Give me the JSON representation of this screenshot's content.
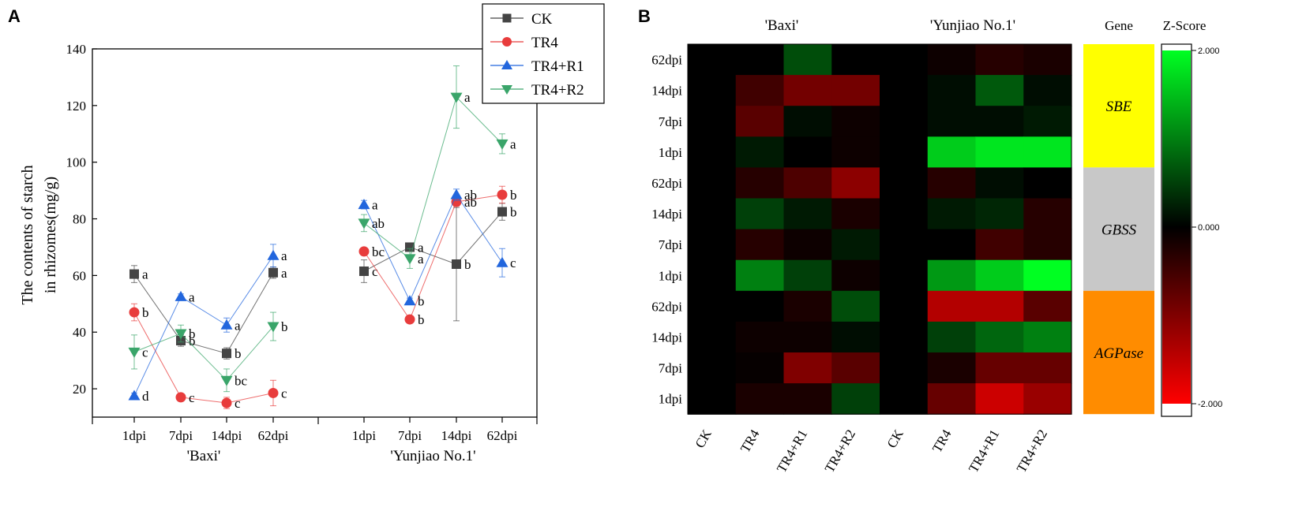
{
  "chart_data": [
    {
      "type": "line",
      "panel_label": "A",
      "ylabel_line1": "The contents of starch",
      "ylabel_line2": "in rhizomes(mg/g)",
      "ylim": [
        10,
        140
      ],
      "yticks": [
        "20",
        "40",
        "60",
        "80",
        "100",
        "120",
        "140"
      ],
      "groups": [
        {
          "name": "'Baxi'",
          "categories": [
            "1dpi",
            "7dpi",
            "14dpi",
            "62dpi"
          ]
        },
        {
          "name": "'Yunjiao No.1'",
          "categories": [
            "1dpi",
            "7dpi",
            "14dpi",
            "62dpi"
          ]
        }
      ],
      "series": [
        {
          "name": "CK",
          "color": "#444444",
          "marker": "square",
          "values": [
            60.5,
            37,
            32.5,
            61,
            61.5,
            70,
            64,
            82.5
          ],
          "errors": [
            3,
            2,
            2,
            2,
            4,
            1,
            20,
            3
          ],
          "letters": [
            "a",
            "b",
            "b",
            "a",
            "c",
            "a",
            "b",
            "b"
          ]
        },
        {
          "name": "TR4",
          "color": "#e83c3c",
          "marker": "circle",
          "values": [
            47,
            17,
            15,
            18.5,
            68.5,
            44.5,
            86,
            88.5
          ],
          "errors": [
            3,
            1,
            2,
            4.5,
            1,
            1,
            1.5,
            3
          ],
          "letters": [
            "b",
            "c",
            "c",
            "c",
            "bc",
            "b",
            "ab",
            "b"
          ]
        },
        {
          "name": "TR4+R1",
          "color": "#2266dd",
          "marker": "triangle-up",
          "values": [
            17.5,
            52.5,
            42.5,
            67,
            85,
            51,
            88.5,
            64.5
          ],
          "errors": [
            1,
            1,
            2.5,
            4,
            1.5,
            1,
            2,
            5
          ],
          "letters": [
            "d",
            "a",
            "a",
            "a",
            "a",
            "b",
            "ab",
            "c"
          ]
        },
        {
          "name": "TR4+R2",
          "color": "#3aa56a",
          "marker": "triangle-down",
          "values": [
            33,
            39.5,
            23,
            42,
            78.5,
            66,
            123,
            106.5
          ],
          "errors": [
            6,
            3,
            4,
            5,
            3,
            3.5,
            11,
            3.5
          ],
          "letters": [
            "c",
            "b",
            "bc",
            "b",
            "ab",
            "a",
            "a",
            "a"
          ]
        }
      ]
    },
    {
      "type": "heatmap",
      "panel_label": "B",
      "group_labels": [
        "'Baxi'",
        "'Yunjiao No.1'"
      ],
      "gene_header": "Gene",
      "zscore_header": "Z-Score",
      "rows": [
        "62dpi",
        "14dpi",
        "7dpi",
        "1dpi",
        "62dpi",
        "14dpi",
        "7dpi",
        "1dpi",
        "62dpi",
        "14dpi",
        "7dpi",
        "1dpi"
      ],
      "columns": [
        "CK",
        "TR4",
        "TR4+R1",
        "TR4+R2",
        "CK",
        "TR4",
        "TR4+R1",
        "TR4+R2"
      ],
      "values": [
        [
          0,
          0,
          0.6,
          0,
          0,
          -0.1,
          -0.3,
          -0.2
        ],
        [
          0,
          -0.5,
          -0.9,
          -0.9,
          0,
          0.1,
          0.7,
          0.1
        ],
        [
          0,
          -0.7,
          0.1,
          -0.1,
          0,
          0.1,
          0.1,
          0.2
        ],
        [
          0,
          0.2,
          0,
          -0.1,
          0,
          1.6,
          1.8,
          1.8
        ],
        [
          0,
          -0.3,
          -0.6,
          -1.1,
          0,
          -0.3,
          0.1,
          0
        ],
        [
          0,
          0.5,
          0.2,
          -0.2,
          0,
          0.2,
          0.3,
          -0.3
        ],
        [
          0,
          -0.3,
          -0.1,
          0.2,
          0,
          0,
          -0.5,
          -0.3
        ],
        [
          0,
          1.0,
          0.5,
          -0.1,
          0,
          1.2,
          1.6,
          2.0
        ],
        [
          0,
          0,
          -0.2,
          0.6,
          0,
          -1.4,
          -1.4,
          -0.7
        ],
        [
          0,
          -0.1,
          -0.1,
          0.1,
          0,
          0.5,
          0.8,
          1.0
        ],
        [
          0,
          -0.05,
          -1.0,
          -0.7,
          0,
          -0.2,
          -0.8,
          -0.8
        ],
        [
          0,
          -0.2,
          -0.2,
          0.5,
          0,
          -0.8,
          -1.6,
          -1.2
        ]
      ],
      "genes": [
        {
          "name": "SBE",
          "color": "#ffff00"
        },
        {
          "name": "GBSS",
          "color": "#c8c8c8"
        },
        {
          "name": "AGPase",
          "color": "#ff8c00"
        }
      ],
      "colorscale": {
        "min": -2,
        "max": 2,
        "low_color": "#ff0000",
        "mid_color": "#000000",
        "high_color": "#00ff22"
      },
      "colorbar_ticks": [
        "2.000",
        "0.000",
        "-2.000"
      ]
    }
  ]
}
